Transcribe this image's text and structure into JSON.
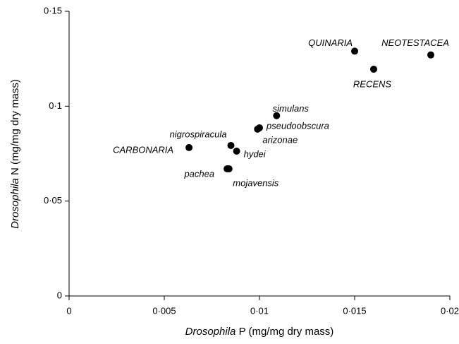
{
  "chart_data": {
    "type": "scatter",
    "xlabel": {
      "genus": "Drosophila",
      "rest": "P (mg/mg dry mass)"
    },
    "ylabel": {
      "genus": "Drosophila",
      "rest": "N (mg/mg dry mass)"
    },
    "point_labels": [
      "QUINARIA",
      "NEOTESTACEA",
      "RECENS",
      "simulans",
      "pseudoobscura",
      "arizonae",
      "nigrospiracula",
      "hydei",
      "CARBONARIA",
      "pachea",
      "mojavensis"
    ],
    "x": [
      0.015,
      0.019,
      0.016,
      0.0109,
      0.01,
      0.0099,
      0.0085,
      0.0088,
      0.0063,
      0.0083,
      0.0084
    ],
    "values": [
      0.129,
      0.127,
      0.1195,
      0.095,
      0.0886,
      0.0879,
      0.0793,
      0.0763,
      0.0782,
      0.067,
      0.067
    ],
    "color": "#000000",
    "xlim": [
      0,
      0.02
    ],
    "xticks": [
      0,
      {
        "value": 0.005,
        "label": "0·005"
      },
      {
        "value": 0.01,
        "label": "0·01"
      },
      {
        "value": 0.015,
        "label": "0·015"
      },
      {
        "value": 0.02,
        "label": "0·02"
      }
    ],
    "ylim": [
      0,
      0.15
    ],
    "yticks": [
      0,
      {
        "value": 0.05,
        "label": "0·05"
      },
      {
        "value": 0.1,
        "label": "0·1"
      },
      {
        "value": 0.15,
        "label": "0·15"
      }
    ],
    "grid": false
  }
}
